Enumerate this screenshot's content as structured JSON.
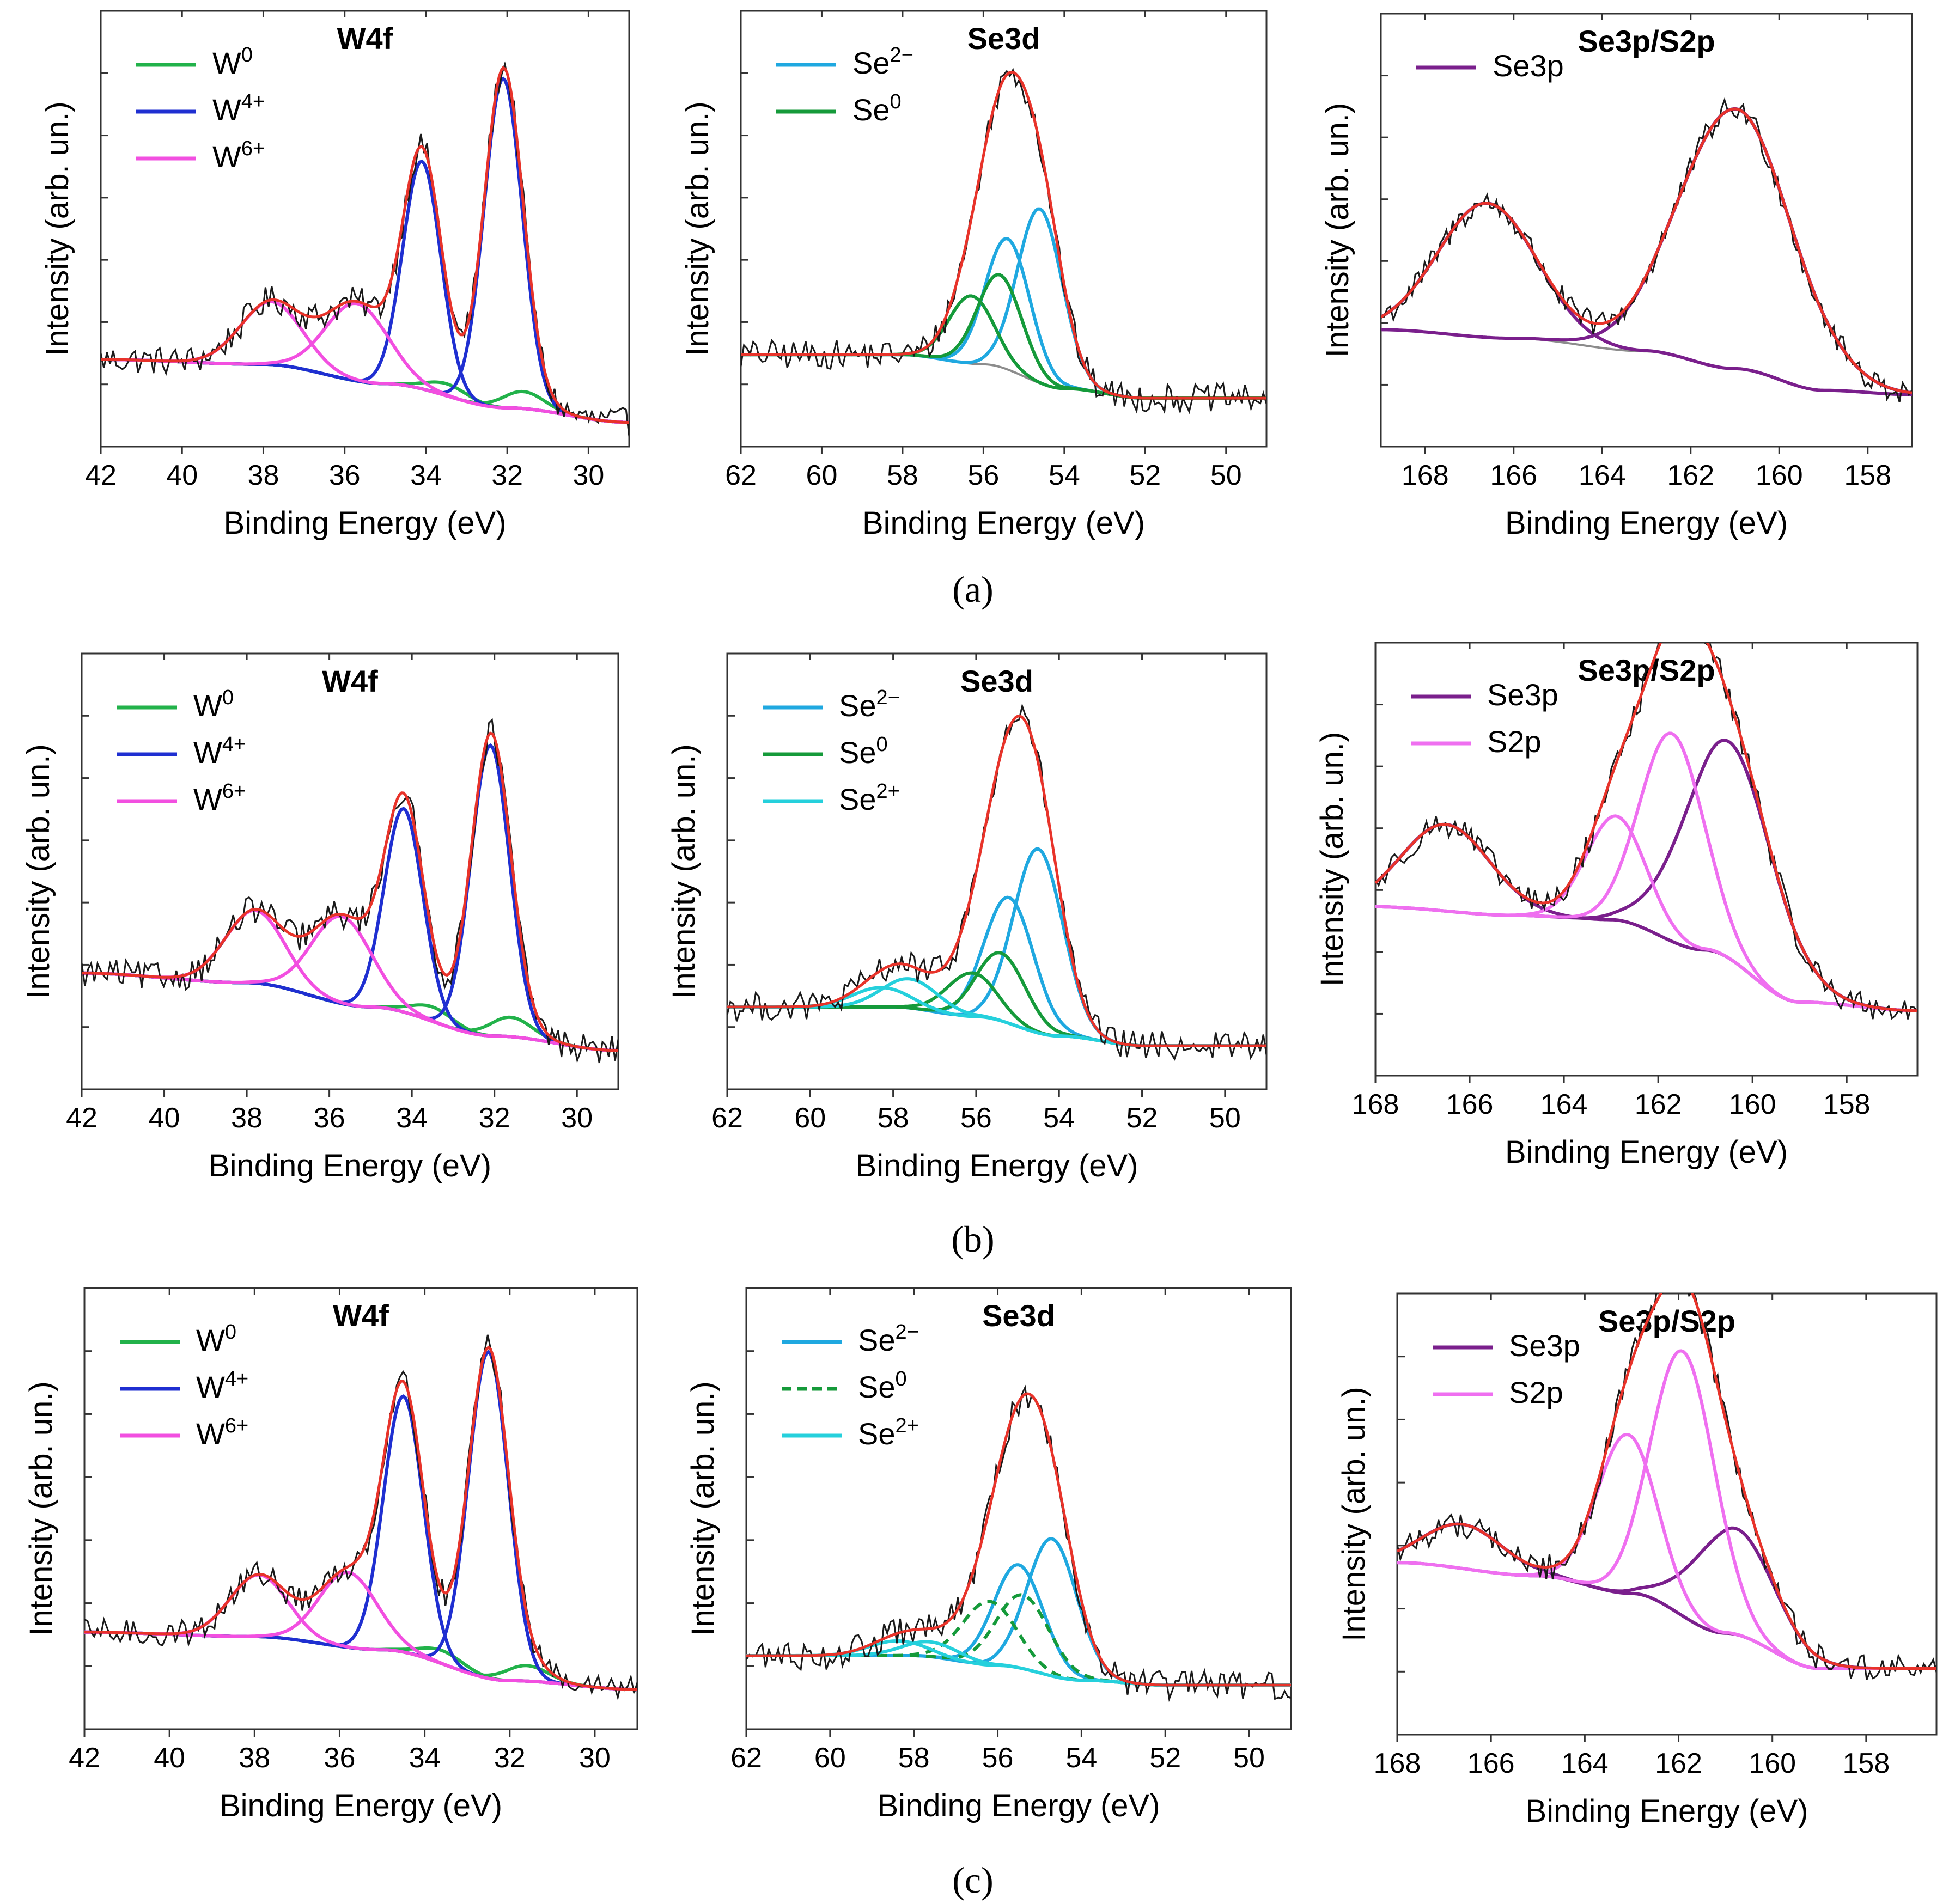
{
  "figure_captions": [
    "(a)",
    "(b)",
    "(c)"
  ],
  "colors": {
    "raw": "#1a1a1a",
    "envelope": "#e8332a",
    "background_line": "#8c8c8c",
    "W0": "#22b24a",
    "W4": "#1f2fd1",
    "W6": "#f24fe0",
    "Se2minus": "#1fa8e0",
    "Se0": "#159a3a",
    "Se2plus": "#25d0dc",
    "Se3p": "#7a1f8c",
    "S2p": "#ef6ff0"
  },
  "chart_data": [
    {
      "id": "a1",
      "row": "(a)",
      "type": "line",
      "title": "W4f",
      "xlabel": "Binding Energy (eV)",
      "ylabel": "Intensity (arb. un.)",
      "xlim": [
        42,
        29
      ],
      "xticks": [
        42,
        40,
        38,
        36,
        34,
        32,
        30
      ],
      "ylim": [
        -0.05,
        0.85
      ],
      "legend_position": "top-left",
      "legend": [
        {
          "label": "W",
          "sup": "0",
          "color": "#22b24a",
          "dash": false
        },
        {
          "label": "W",
          "sup": "4+",
          "color": "#1f2fd1",
          "dash": false
        },
        {
          "label": "W",
          "sup": "6+",
          "color": "#f24fe0",
          "dash": false
        }
      ],
      "background": [
        [
          42,
          0.13
        ],
        [
          38,
          0.12
        ],
        [
          35,
          0.08
        ],
        [
          32,
          0.03
        ],
        [
          29,
          0.0
        ]
      ],
      "peaks": [
        {
          "component": "W0",
          "center": 33.5,
          "height": 0.025,
          "fwhm": 1.2,
          "color": "#22b24a",
          "dash": false
        },
        {
          "component": "W0",
          "center": 31.6,
          "height": 0.035,
          "fwhm": 1.2,
          "color": "#22b24a",
          "dash": false
        },
        {
          "component": "W4+",
          "center": 34.1,
          "height": 0.47,
          "fwhm": 1.1,
          "color": "#1f2fd1",
          "dash": false
        },
        {
          "component": "W4+",
          "center": 32.1,
          "height": 0.68,
          "fwhm": 1.1,
          "color": "#1f2fd1",
          "dash": false
        },
        {
          "component": "W6+",
          "center": 35.7,
          "height": 0.16,
          "fwhm": 1.8,
          "color": "#f24fe0",
          "dash": false
        },
        {
          "component": "W6+",
          "center": 37.8,
          "height": 0.13,
          "fwhm": 1.8,
          "color": "#f24fe0",
          "dash": false
        }
      ]
    },
    {
      "id": "a2",
      "row": "(a)",
      "type": "line",
      "title": "Se3d",
      "xlabel": "Binding Energy (eV)",
      "ylabel": "Intensity (arb. un.)",
      "xlim": [
        62,
        49
      ],
      "xticks": [
        62,
        60,
        58,
        56,
        54,
        52,
        50
      ],
      "ylim": [
        -0.05,
        0.85
      ],
      "legend_position": "top-left",
      "legend": [
        {
          "label": "Se",
          "sup": "2−",
          "color": "#1fa8e0",
          "dash": false
        },
        {
          "label": "Se",
          "sup": "0",
          "color": "#159a3a",
          "dash": false
        }
      ],
      "background": [
        [
          62,
          0.14
        ],
        [
          58,
          0.14
        ],
        [
          56,
          0.12
        ],
        [
          54,
          0.07
        ],
        [
          52,
          0.05
        ],
        [
          49,
          0.05
        ]
      ],
      "peaks": [
        {
          "component": "Se2-",
          "center": 54.6,
          "height": 0.36,
          "fwhm": 1.3,
          "color": "#1fa8e0",
          "dash": false
        },
        {
          "component": "Se2-",
          "center": 55.4,
          "height": 0.27,
          "fwhm": 1.3,
          "color": "#1fa8e0",
          "dash": false
        },
        {
          "component": "Se0",
          "center": 55.6,
          "height": 0.19,
          "fwhm": 1.3,
          "color": "#159a3a",
          "dash": false
        },
        {
          "component": "Se0",
          "center": 56.3,
          "height": 0.14,
          "fwhm": 1.3,
          "color": "#159a3a",
          "dash": false
        }
      ]
    },
    {
      "id": "a3",
      "row": "(a)",
      "type": "line",
      "title": "Se3p/S2p",
      "xlabel": "Binding Energy (eV)",
      "ylabel": "Intensity (arb. un.)",
      "xlim": [
        169,
        157
      ],
      "xticks": [
        168,
        166,
        164,
        162,
        160,
        158
      ],
      "ylim": [
        -0.05,
        0.95
      ],
      "legend_position": "top-left",
      "legend": [
        {
          "label": "Se3p",
          "sup": "",
          "color": "#7a1f8c",
          "dash": false
        }
      ],
      "background": [
        [
          169,
          0.22
        ],
        [
          166,
          0.2
        ],
        [
          163,
          0.17
        ],
        [
          161,
          0.13
        ],
        [
          159,
          0.08
        ],
        [
          157,
          0.07
        ]
      ],
      "peaks": [
        {
          "component": "Se3p",
          "center": 166.6,
          "height": 0.31,
          "fwhm": 2.6,
          "color": "#7a1f8c",
          "dash": false
        },
        {
          "component": "Se3p",
          "center": 161.0,
          "height": 0.6,
          "fwhm": 3.0,
          "color": "#7a1f8c",
          "dash": false
        }
      ]
    },
    {
      "id": "b1",
      "row": "(b)",
      "type": "line",
      "title": "W4f",
      "xlabel": "Binding Energy (eV)",
      "ylabel": "Intensity (arb. un.)",
      "xlim": [
        42,
        29
      ],
      "xticks": [
        42,
        40,
        38,
        36,
        34,
        32,
        30
      ],
      "ylim": [
        -0.05,
        0.85
      ],
      "legend_position": "top-left",
      "legend": [
        {
          "label": "W",
          "sup": "0",
          "color": "#22b24a",
          "dash": false
        },
        {
          "label": "W",
          "sup": "4+",
          "color": "#1f2fd1",
          "dash": false
        },
        {
          "label": "W",
          "sup": "6+",
          "color": "#f24fe0",
          "dash": false
        }
      ],
      "background": [
        [
          42,
          0.19
        ],
        [
          38,
          0.17
        ],
        [
          35,
          0.12
        ],
        [
          32,
          0.06
        ],
        [
          29,
          0.03
        ]
      ],
      "peaks": [
        {
          "component": "W0",
          "center": 33.5,
          "height": 0.03,
          "fwhm": 1.2,
          "color": "#22b24a",
          "dash": false
        },
        {
          "component": "W0",
          "center": 31.6,
          "height": 0.04,
          "fwhm": 1.2,
          "color": "#22b24a",
          "dash": false
        },
        {
          "component": "W4+",
          "center": 34.2,
          "height": 0.42,
          "fwhm": 1.1,
          "color": "#1f2fd1",
          "dash": false
        },
        {
          "component": "W4+",
          "center": 32.1,
          "height": 0.6,
          "fwhm": 1.1,
          "color": "#1f2fd1",
          "dash": false
        },
        {
          "component": "W6+",
          "center": 35.7,
          "height": 0.18,
          "fwhm": 1.7,
          "color": "#f24fe0",
          "dash": false
        },
        {
          "component": "W6+",
          "center": 37.8,
          "height": 0.15,
          "fwhm": 1.7,
          "color": "#f24fe0",
          "dash": false
        }
      ]
    },
    {
      "id": "b2",
      "row": "(b)",
      "type": "line",
      "title": "Se3d",
      "xlabel": "Binding Energy (eV)",
      "ylabel": "Intensity (arb. un.)",
      "xlim": [
        62,
        49
      ],
      "xticks": [
        62,
        60,
        58,
        56,
        54,
        52,
        50
      ],
      "ylim": [
        -0.05,
        0.85
      ],
      "legend_position": "top-left",
      "legend": [
        {
          "label": "Se",
          "sup": "2−",
          "color": "#1fa8e0",
          "dash": false
        },
        {
          "label": "Se",
          "sup": "0",
          "color": "#159a3a",
          "dash": false
        },
        {
          "label": "Se",
          "sup": "2+",
          "color": "#25d0dc",
          "dash": false
        }
      ],
      "background": [
        [
          62,
          0.12
        ],
        [
          58,
          0.12
        ],
        [
          56,
          0.1
        ],
        [
          54,
          0.06
        ],
        [
          52,
          0.04
        ],
        [
          49,
          0.04
        ]
      ],
      "peaks": [
        {
          "component": "Se2-",
          "center": 54.5,
          "height": 0.38,
          "fwhm": 1.4,
          "color": "#1fa8e0",
          "dash": false
        },
        {
          "component": "Se2-",
          "center": 55.2,
          "height": 0.26,
          "fwhm": 1.4,
          "color": "#1fa8e0",
          "dash": false
        },
        {
          "component": "Se0",
          "center": 55.4,
          "height": 0.14,
          "fwhm": 1.4,
          "color": "#159a3a",
          "dash": false
        },
        {
          "component": "Se0",
          "center": 56.1,
          "height": 0.09,
          "fwhm": 1.4,
          "color": "#159a3a",
          "dash": false
        },
        {
          "component": "Se2+",
          "center": 57.6,
          "height": 0.06,
          "fwhm": 1.6,
          "color": "#25d0dc",
          "dash": false
        },
        {
          "component": "Se2+",
          "center": 58.3,
          "height": 0.04,
          "fwhm": 1.6,
          "color": "#25d0dc",
          "dash": false
        }
      ]
    },
    {
      "id": "b3",
      "row": "(b)",
      "type": "line",
      "title": "Se3p/S2p",
      "xlabel": "Binding Energy (eV)",
      "ylabel": "Intensity (arb. un.)",
      "xlim": [
        168,
        156.5
      ],
      "xticks": [
        168,
        166,
        164,
        162,
        160,
        158
      ],
      "ylim": [
        -0.05,
        0.95
      ],
      "legend_position": "top-left",
      "legend": [
        {
          "label": "Se3p",
          "sup": "",
          "color": "#7a1f8c",
          "dash": false
        },
        {
          "label": "S2p",
          "sup": "",
          "color": "#ef6ff0",
          "dash": false
        }
      ],
      "background": [
        [
          168,
          0.34
        ],
        [
          165,
          0.32
        ],
        [
          163,
          0.31
        ],
        [
          161,
          0.24
        ],
        [
          159,
          0.12
        ],
        [
          156.5,
          0.1
        ]
      ],
      "peaks": [
        {
          "component": "Se3p",
          "center": 166.5,
          "height": 0.2,
          "fwhm": 2.2,
          "color": "#7a1f8c",
          "dash": false
        },
        {
          "component": "Se3p",
          "center": 160.5,
          "height": 0.5,
          "fwhm": 2.2,
          "color": "#7a1f8c",
          "dash": false
        },
        {
          "component": "S2p",
          "center": 162.9,
          "height": 0.24,
          "fwhm": 1.5,
          "color": "#ef6ff0",
          "dash": false
        },
        {
          "component": "S2p",
          "center": 161.7,
          "height": 0.48,
          "fwhm": 1.6,
          "color": "#ef6ff0",
          "dash": false
        }
      ]
    },
    {
      "id": "c1",
      "row": "(c)",
      "type": "line",
      "title": "W4f",
      "xlabel": "Binding Energy (eV)",
      "ylabel": "Intensity (arb. un.)",
      "xlim": [
        42,
        29
      ],
      "xticks": [
        42,
        40,
        38,
        36,
        34,
        32,
        30
      ],
      "ylim": [
        -0.05,
        0.95
      ],
      "legend_position": "top-left",
      "legend": [
        {
          "label": "W",
          "sup": "0",
          "color": "#22b24a",
          "dash": false
        },
        {
          "label": "W",
          "sup": "4+",
          "color": "#1f2fd1",
          "dash": false
        },
        {
          "label": "W",
          "sup": "6+",
          "color": "#f24fe0",
          "dash": false
        }
      ],
      "background": [
        [
          42,
          0.17
        ],
        [
          38,
          0.16
        ],
        [
          35,
          0.13
        ],
        [
          32,
          0.06
        ],
        [
          29,
          0.04
        ]
      ],
      "peaks": [
        {
          "component": "W0",
          "center": 33.6,
          "height": 0.03,
          "fwhm": 1.2,
          "color": "#22b24a",
          "dash": false
        },
        {
          "component": "W0",
          "center": 31.6,
          "height": 0.035,
          "fwhm": 1.2,
          "color": "#22b24a",
          "dash": false
        },
        {
          "component": "W4+",
          "center": 34.5,
          "height": 0.58,
          "fwhm": 1.1,
          "color": "#1f2fd1",
          "dash": false
        },
        {
          "component": "W4+",
          "center": 32.5,
          "height": 0.74,
          "fwhm": 1.1,
          "color": "#1f2fd1",
          "dash": false
        },
        {
          "component": "W6+",
          "center": 35.8,
          "height": 0.17,
          "fwhm": 1.6,
          "color": "#f24fe0",
          "dash": false
        },
        {
          "component": "W6+",
          "center": 37.9,
          "height": 0.14,
          "fwhm": 1.6,
          "color": "#f24fe0",
          "dash": false
        }
      ]
    },
    {
      "id": "c2",
      "row": "(c)",
      "type": "line",
      "title": "Se3d",
      "xlabel": "Binding Energy (eV)",
      "ylabel": "Intensity (arb. un.)",
      "xlim": [
        62,
        49
      ],
      "xticks": [
        62,
        60,
        58,
        56,
        54,
        52,
        50
      ],
      "ylim": [
        -0.05,
        0.85
      ],
      "legend_position": "top-left",
      "legend": [
        {
          "label": "Se",
          "sup": "2−",
          "color": "#1fa8e0",
          "dash": false
        },
        {
          "label": "Se",
          "sup": "0",
          "color": "#159a3a",
          "dash": true
        },
        {
          "label": "Se",
          "sup": "2+",
          "color": "#25d0dc",
          "dash": false
        }
      ],
      "background": [
        [
          62,
          0.1
        ],
        [
          58,
          0.1
        ],
        [
          56,
          0.08
        ],
        [
          54,
          0.05
        ],
        [
          52,
          0.04
        ],
        [
          49,
          0.04
        ]
      ],
      "peaks": [
        {
          "component": "Se2-",
          "center": 54.7,
          "height": 0.28,
          "fwhm": 1.4,
          "color": "#1fa8e0",
          "dash": false
        },
        {
          "component": "Se2-",
          "center": 55.5,
          "height": 0.21,
          "fwhm": 1.4,
          "color": "#1fa8e0",
          "dash": false
        },
        {
          "component": "Se0",
          "center": 55.4,
          "height": 0.15,
          "fwhm": 1.5,
          "color": "#159a3a",
          "dash": true
        },
        {
          "component": "Se0",
          "center": 56.2,
          "height": 0.13,
          "fwhm": 1.5,
          "color": "#159a3a",
          "dash": true
        },
        {
          "component": "Se2+",
          "center": 57.6,
          "height": 0.03,
          "fwhm": 1.6,
          "color": "#25d0dc",
          "dash": false
        },
        {
          "component": "Se2+",
          "center": 58.4,
          "height": 0.03,
          "fwhm": 1.6,
          "color": "#25d0dc",
          "dash": false
        }
      ]
    },
    {
      "id": "c3",
      "row": "(c)",
      "type": "line",
      "title": "Se3p/S2p",
      "xlabel": "Binding Energy (eV)",
      "ylabel": "Intensity (arb. un.)",
      "xlim": [
        168,
        156.5
      ],
      "xticks": [
        168,
        166,
        164,
        162,
        160,
        158
      ],
      "ylim": [
        -0.05,
        0.95
      ],
      "legend_position": "top-left",
      "legend": [
        {
          "label": "Se3p",
          "sup": "",
          "color": "#7a1f8c",
          "dash": false
        },
        {
          "label": "S2p",
          "sup": "",
          "color": "#ef6ff0",
          "dash": false
        }
      ],
      "background": [
        [
          168,
          0.34
        ],
        [
          165,
          0.31
        ],
        [
          163,
          0.27
        ],
        [
          161,
          0.18
        ],
        [
          159,
          0.1
        ],
        [
          156.5,
          0.1
        ]
      ],
      "peaks": [
        {
          "component": "Se3p",
          "center": 166.6,
          "height": 0.1,
          "fwhm": 2.0,
          "color": "#7a1f8c",
          "dash": false
        },
        {
          "component": "Se3p",
          "center": 160.8,
          "height": 0.24,
          "fwhm": 2.0,
          "color": "#7a1f8c",
          "dash": false
        },
        {
          "component": "S2p",
          "center": 163.1,
          "height": 0.36,
          "fwhm": 1.5,
          "color": "#ef6ff0",
          "dash": false
        },
        {
          "component": "S2p",
          "center": 161.9,
          "height": 0.6,
          "fwhm": 1.6,
          "color": "#ef6ff0",
          "dash": false
        }
      ]
    }
  ]
}
